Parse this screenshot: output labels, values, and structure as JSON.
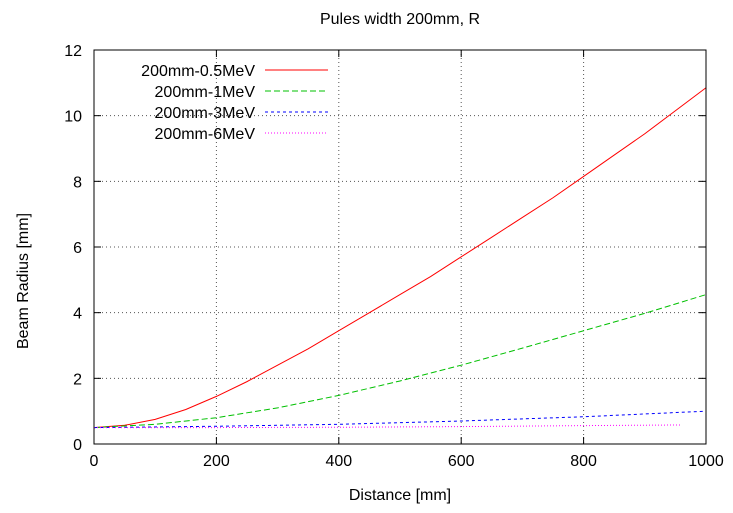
{
  "chart_data": {
    "type": "line",
    "title": "Pules width 200mm, R",
    "xlabel": "Distance [mm]",
    "ylabel": "Beam Radius [mm]",
    "xlim": [
      0,
      1000
    ],
    "ylim": [
      0,
      12
    ],
    "xticks": [
      0,
      200,
      400,
      600,
      800,
      1000
    ],
    "yticks": [
      0,
      2,
      4,
      6,
      8,
      10,
      12
    ],
    "grid": true,
    "legend_position": "top-left",
    "series": [
      {
        "name": "200mm-0.5MeV",
        "color": "#ff0000",
        "dash": "solid",
        "x": [
          0,
          50,
          100,
          150,
          200,
          250,
          300,
          350,
          400,
          450,
          500,
          550,
          600,
          650,
          700,
          750,
          800,
          850,
          900,
          950,
          1000
        ],
        "y": [
          0.5,
          0.57,
          0.75,
          1.05,
          1.45,
          1.9,
          2.4,
          2.9,
          3.45,
          4.0,
          4.55,
          5.1,
          5.7,
          6.3,
          6.9,
          7.5,
          8.15,
          8.8,
          9.45,
          10.15,
          10.85
        ]
      },
      {
        "name": "200mm-1MeV",
        "color": "#00c000",
        "dash": "dashed",
        "x": [
          0,
          100,
          200,
          300,
          400,
          500,
          600,
          700,
          800,
          900,
          1000
        ],
        "y": [
          0.5,
          0.6,
          0.8,
          1.1,
          1.48,
          1.92,
          2.4,
          2.92,
          3.45,
          3.98,
          4.55
        ]
      },
      {
        "name": "200mm-3MeV",
        "color": "#0000ff",
        "dash": "dotted",
        "x": [
          0,
          200,
          400,
          600,
          800,
          1000
        ],
        "y": [
          0.5,
          0.54,
          0.6,
          0.7,
          0.83,
          1.0
        ]
      },
      {
        "name": "200mm-6MeV",
        "color": "#ff00ff",
        "dash": "fine-dotted",
        "x": [
          0,
          200,
          400,
          600,
          800,
          960
        ],
        "y": [
          0.5,
          0.5,
          0.51,
          0.53,
          0.56,
          0.58
        ]
      }
    ]
  }
}
